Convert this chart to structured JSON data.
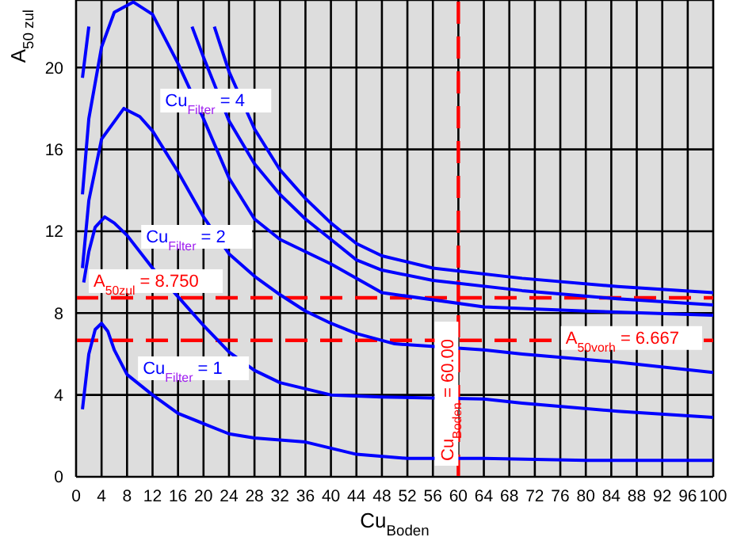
{
  "chart_data": {
    "type": "line",
    "xlabel": "Cu$_{Boden}$",
    "ylabel": "A$_{50 zul}$",
    "xlim": [
      0,
      100
    ],
    "ylim": [
      0,
      23.3
    ],
    "xticks": [
      0,
      4,
      8,
      12,
      16,
      20,
      24,
      28,
      32,
      36,
      40,
      44,
      48,
      52,
      56,
      60,
      64,
      68,
      72,
      76,
      80,
      84,
      88,
      92,
      96,
      100
    ],
    "yticks": [
      0,
      4,
      8,
      12,
      16,
      20
    ],
    "grid": true,
    "marker": "none",
    "line_style": "solid",
    "series": [
      {
        "name": "Cu$_{Filter}$ = 1",
        "color": "#0000ff",
        "x": [
          1,
          2,
          3,
          4,
          5,
          6,
          8,
          12,
          16,
          20,
          24,
          28,
          36,
          44,
          52,
          64,
          80,
          100
        ],
        "values": [
          3.3,
          6,
          7.2,
          7.5,
          7.1,
          6.2,
          5,
          4,
          3.1,
          2.6,
          2.1,
          1.9,
          1.7,
          1.1,
          0.9,
          0.9,
          0.8,
          0.8
        ]
      },
      {
        "name": "Cu$_{Filter}$ = 2",
        "color": "#0000ff",
        "x": [
          1.2,
          2,
          3,
          4.5,
          6,
          8,
          12,
          16,
          20,
          24,
          28,
          32,
          36,
          40,
          48,
          64,
          70,
          85,
          100
        ],
        "values": [
          9.5,
          11,
          12.2,
          12.7,
          12.4,
          11.8,
          10.2,
          8.8,
          7.4,
          6.1,
          5.2,
          4.6,
          4.3,
          4,
          3.9,
          3.8,
          3.6,
          3.2,
          2.9
        ]
      },
      {
        "name": "Cu$_{Filter}$ = 4",
        "color": "#0000ff",
        "x": [
          1,
          2,
          4,
          7.5,
          10,
          12,
          16,
          20,
          24,
          28,
          32,
          36,
          40,
          44,
          50,
          64,
          70,
          85,
          100
        ],
        "values": [
          10.2,
          13.5,
          16.5,
          18,
          17.6,
          16.9,
          14.9,
          12.7,
          10.9,
          9.8,
          8.9,
          8.1,
          7.5,
          7,
          6.5,
          6.2,
          6,
          5.6,
          5.1
        ]
      },
      {
        "color": "#0000ff",
        "x": [
          1,
          2,
          4,
          6,
          9,
          12,
          16,
          20,
          24,
          28,
          32,
          40,
          48,
          64,
          80,
          100
        ],
        "values": [
          13.8,
          17.5,
          21,
          22.7,
          23.2,
          22.6,
          20.2,
          17.5,
          14.6,
          12.6,
          11.6,
          10.4,
          9,
          8.3,
          8.1,
          7.9
        ]
      },
      {
        "color": "#0000ff",
        "x": [
          1,
          2,
          10,
          18.2,
          20,
          24,
          28,
          32,
          36,
          40,
          44,
          48,
          56,
          70,
          85,
          100
        ],
        "values": [
          19.5,
          22,
          null,
          22,
          20.5,
          17.4,
          15.3,
          13.8,
          12.6,
          11.6,
          10.6,
          10.1,
          9.6,
          9.1,
          8.7,
          8.4
        ]
      },
      {
        "color": "#0000ff",
        "x": [
          21.7,
          24,
          28,
          32,
          36,
          40,
          44,
          48,
          56,
          70,
          85,
          100
        ],
        "values": [
          22,
          19.8,
          17,
          15,
          13.6,
          12.4,
          11.4,
          10.8,
          10.2,
          9.7,
          9.3,
          9
        ]
      }
    ],
    "ref_lines": [
      {
        "axis": "y",
        "value": 8.75,
        "label": "A$_{50zul}$ = 8.750",
        "color": "#ff0000",
        "line_style": "dashed"
      },
      {
        "axis": "y",
        "value": 6.667,
        "label": "A$_{50vorh}$ = 6.667",
        "color": "#ff0000",
        "line_style": "dashed"
      },
      {
        "axis": "x",
        "value": 60,
        "label": "Cu$_{Boden}$ = 60.00",
        "color": "#ff0000",
        "line_style": "dashed"
      }
    ]
  }
}
